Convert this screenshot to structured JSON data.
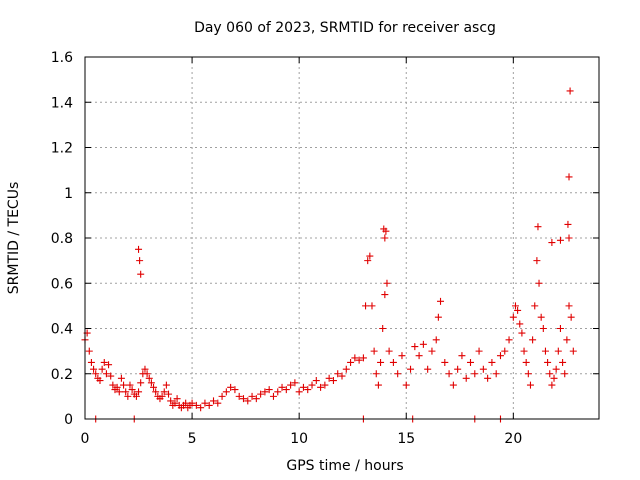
{
  "chart_data": {
    "type": "scatter",
    "title": "Day 060 of 2023, SRMTID for receiver ascg",
    "xlabel": "GPS time / hours",
    "ylabel": "SRMTID / TECUs",
    "xlim": [
      0,
      24
    ],
    "ylim": [
      0,
      1.6
    ],
    "grid": true,
    "xticks": [
      0,
      5,
      10,
      15,
      20
    ],
    "yticks": [
      0,
      0.2,
      0.4,
      0.6,
      0.8,
      1,
      1.2,
      1.4,
      1.6
    ],
    "xtick_labels": [
      "0",
      "5",
      "10",
      "15",
      "20"
    ],
    "ytick_labels": [
      "0",
      "0.2",
      "0.4",
      "0.6",
      "0.8",
      "1",
      "1.2",
      "1.4",
      "1.6"
    ],
    "marker": "plus",
    "color": "#e00000",
    "series": [
      {
        "name": "SRMTID",
        "x": [
          0.0,
          0.1,
          0.2,
          0.3,
          0.4,
          0.5,
          0.6,
          0.7,
          0.8,
          0.9,
          1.0,
          1.1,
          1.2,
          1.3,
          1.4,
          1.5,
          1.6,
          1.7,
          1.8,
          1.9,
          2.0,
          2.1,
          2.2,
          2.3,
          2.4,
          2.5,
          2.6,
          2.7,
          2.8,
          2.9,
          3.0,
          3.1,
          3.2,
          3.3,
          3.4,
          3.5,
          3.6,
          3.7,
          3.8,
          3.9,
          4.0,
          4.1,
          4.2,
          4.3,
          4.4,
          4.5,
          4.6,
          4.7,
          4.8,
          4.9,
          5.0,
          5.2,
          5.4,
          5.6,
          5.8,
          6.0,
          6.2,
          6.4,
          6.6,
          6.8,
          7.0,
          7.2,
          7.4,
          7.6,
          7.8,
          8.0,
          8.2,
          8.4,
          8.6,
          8.8,
          9.0,
          9.2,
          9.4,
          9.6,
          9.8,
          10.0,
          10.2,
          10.4,
          10.6,
          10.8,
          11.0,
          11.2,
          11.4,
          11.6,
          11.8,
          12.0,
          12.2,
          12.4,
          12.6,
          12.8,
          13.0,
          13.1,
          13.2,
          13.3,
          13.4,
          13.5,
          13.6,
          13.7,
          13.8,
          13.9,
          14.0,
          14.1,
          14.2,
          14.4,
          14.6,
          14.8,
          15.0,
          15.2,
          15.4,
          15.6,
          15.8,
          16.0,
          16.2,
          16.4,
          16.5,
          16.6,
          16.8,
          17.0,
          17.2,
          17.4,
          17.6,
          17.8,
          18.0,
          18.2,
          18.4,
          18.6,
          18.8,
          19.0,
          19.2,
          19.4,
          19.6,
          19.8,
          20.0,
          20.1,
          20.2,
          20.3,
          20.4,
          20.5,
          20.6,
          20.7,
          20.8,
          20.9,
          21.0,
          21.1,
          21.2,
          21.3,
          21.4,
          21.5,
          21.6,
          21.7,
          21.8,
          21.9,
          22.0,
          22.1,
          22.2,
          22.3,
          22.4,
          22.5,
          22.6,
          22.7,
          22.8,
          2.5,
          2.55,
          2.6,
          13.95,
          14.0,
          14.05,
          21.15,
          21.8,
          22.2,
          22.55,
          22.6,
          22.65,
          22.6,
          0.5,
          2.3,
          13.0,
          15.3,
          18.2,
          19.4
        ],
        "y": [
          0.35,
          0.38,
          0.3,
          0.25,
          0.22,
          0.2,
          0.18,
          0.17,
          0.22,
          0.25,
          0.2,
          0.24,
          0.19,
          0.15,
          0.13,
          0.14,
          0.12,
          0.18,
          0.15,
          0.12,
          0.1,
          0.15,
          0.13,
          0.11,
          0.1,
          0.12,
          0.16,
          0.2,
          0.22,
          0.2,
          0.18,
          0.16,
          0.14,
          0.12,
          0.1,
          0.09,
          0.1,
          0.12,
          0.15,
          0.11,
          0.08,
          0.06,
          0.07,
          0.09,
          0.06,
          0.05,
          0.06,
          0.07,
          0.05,
          0.06,
          0.07,
          0.06,
          0.05,
          0.07,
          0.06,
          0.08,
          0.07,
          0.1,
          0.12,
          0.14,
          0.13,
          0.1,
          0.09,
          0.08,
          0.1,
          0.09,
          0.11,
          0.12,
          0.13,
          0.1,
          0.12,
          0.14,
          0.13,
          0.15,
          0.16,
          0.12,
          0.14,
          0.13,
          0.15,
          0.17,
          0.14,
          0.15,
          0.18,
          0.17,
          0.2,
          0.19,
          0.22,
          0.25,
          0.27,
          0.26,
          0.27,
          0.5,
          0.7,
          0.72,
          0.5,
          0.3,
          0.2,
          0.15,
          0.25,
          0.4,
          0.55,
          0.6,
          0.3,
          0.25,
          0.2,
          0.28,
          0.15,
          0.22,
          0.32,
          0.28,
          0.33,
          0.22,
          0.3,
          0.35,
          0.45,
          0.52,
          0.25,
          0.2,
          0.15,
          0.22,
          0.28,
          0.18,
          0.25,
          0.2,
          0.3,
          0.22,
          0.18,
          0.25,
          0.2,
          0.28,
          0.3,
          0.35,
          0.45,
          0.5,
          0.48,
          0.42,
          0.38,
          0.3,
          0.25,
          0.2,
          0.15,
          0.35,
          0.5,
          0.7,
          0.6,
          0.45,
          0.4,
          0.3,
          0.25,
          0.2,
          0.15,
          0.18,
          0.22,
          0.3,
          0.4,
          0.25,
          0.2,
          0.35,
          0.5,
          0.45,
          0.3,
          0.75,
          0.7,
          0.64,
          0.84,
          0.8,
          0.83,
          0.85,
          0.78,
          0.79,
          0.86,
          1.07,
          1.45,
          0.8,
          0.0,
          0.0,
          0.0,
          0.0,
          0.0,
          0.0
        ]
      }
    ]
  }
}
